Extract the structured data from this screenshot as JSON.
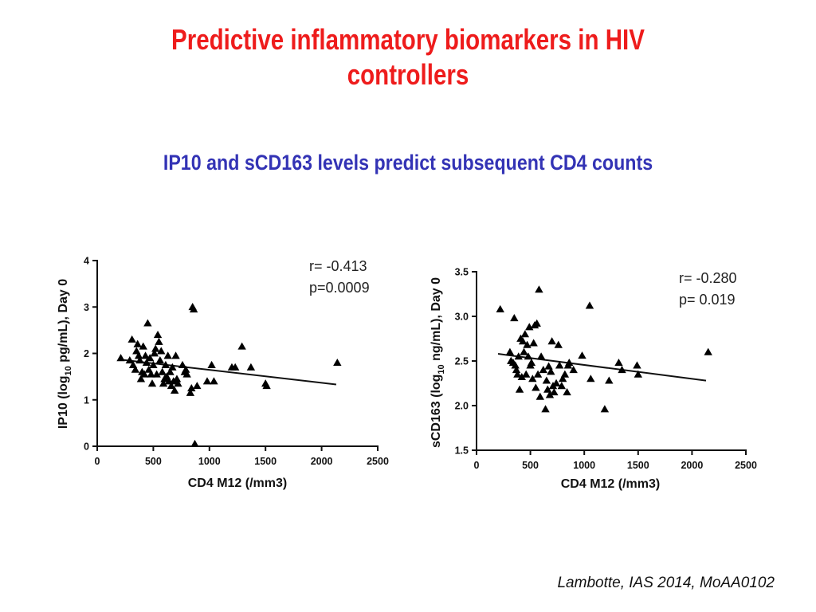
{
  "slide": {
    "title_line1": "Predictive inflammatory biomarkers in HIV",
    "title_line2": "controllers",
    "subtitle": "IP10 and sCD163 levels predict subsequent CD4 counts",
    "citation": "Lambotte, IAS 2014, MoAA0102",
    "colors": {
      "title": "#ee1c1c",
      "subtitle": "#3333b5",
      "markers": "#000000"
    }
  },
  "chart_data": [
    {
      "type": "scatter",
      "marker": "triangle",
      "xlabel": "CD4 M12 (/mm3)",
      "ylabel_parts": {
        "pre": "IP10 (log",
        "sub": "10",
        "post": " pg/mL), Day 0"
      },
      "xlim": [
        0,
        2500
      ],
      "ylim": [
        0,
        4
      ],
      "x_ticks": [
        0,
        500,
        1000,
        1500,
        2000,
        2500
      ],
      "y_ticks": [
        0,
        1,
        2,
        3,
        4
      ],
      "y_tick_labels": [
        "0",
        "1",
        "2",
        "3",
        "4"
      ],
      "annotation_r": "r= -0.413",
      "annotation_p": "p=0.0009",
      "fit_line": {
        "x": [
          200,
          2130
        ],
        "y": [
          1.87,
          1.33
        ]
      },
      "points": [
        [
          210,
          1.9
        ],
        [
          290,
          1.85
        ],
        [
          310,
          2.3
        ],
        [
          320,
          1.75
        ],
        [
          340,
          1.65
        ],
        [
          350,
          2.05
        ],
        [
          360,
          2.2
        ],
        [
          370,
          1.95
        ],
        [
          380,
          1.85
        ],
        [
          390,
          1.45
        ],
        [
          400,
          1.6
        ],
        [
          410,
          2.15
        ],
        [
          420,
          1.55
        ],
        [
          430,
          1.95
        ],
        [
          440,
          1.8
        ],
        [
          450,
          2.65
        ],
        [
          460,
          1.65
        ],
        [
          470,
          1.9
        ],
        [
          480,
          1.55
        ],
        [
          490,
          1.35
        ],
        [
          500,
          1.75
        ],
        [
          510,
          2.0
        ],
        [
          520,
          2.1
        ],
        [
          530,
          1.55
        ],
        [
          540,
          2.4
        ],
        [
          550,
          2.25
        ],
        [
          560,
          1.85
        ],
        [
          570,
          2.05
        ],
        [
          580,
          1.6
        ],
        [
          590,
          1.35
        ],
        [
          600,
          1.45
        ],
        [
          610,
          1.75
        ],
        [
          620,
          1.5
        ],
        [
          630,
          1.95
        ],
        [
          640,
          1.4
        ],
        [
          650,
          1.6
        ],
        [
          660,
          1.3
        ],
        [
          670,
          1.7
        ],
        [
          680,
          1.4
        ],
        [
          690,
          1.2
        ],
        [
          700,
          1.95
        ],
        [
          710,
          1.45
        ],
        [
          720,
          1.35
        ],
        [
          760,
          1.75
        ],
        [
          780,
          1.6
        ],
        [
          790,
          1.65
        ],
        [
          800,
          1.55
        ],
        [
          830,
          1.15
        ],
        [
          840,
          1.25
        ],
        [
          850,
          3.0
        ],
        [
          860,
          2.95
        ],
        [
          870,
          0.05
        ],
        [
          890,
          1.3
        ],
        [
          980,
          1.4
        ],
        [
          1020,
          1.75
        ],
        [
          1040,
          1.4
        ],
        [
          1200,
          1.7
        ],
        [
          1230,
          1.7
        ],
        [
          1290,
          2.15
        ],
        [
          1370,
          1.7
        ],
        [
          1500,
          1.35
        ],
        [
          1510,
          1.3
        ],
        [
          2140,
          1.8
        ]
      ]
    },
    {
      "type": "scatter",
      "marker": "triangle",
      "xlabel": "CD4 M12 (/mm3)",
      "ylabel_parts": {
        "pre": "sCD163 (log",
        "sub": "10",
        "post": " ng/mL), Day 0"
      },
      "xlim": [
        0,
        2500
      ],
      "ylim": [
        1.5,
        3.5
      ],
      "x_ticks": [
        0,
        500,
        1000,
        1500,
        2000,
        2500
      ],
      "y_ticks": [
        1.5,
        2.0,
        2.5,
        3.0,
        3.5
      ],
      "y_tick_labels": [
        "1.5",
        "2.0",
        "2.5",
        "3.0",
        "3.5"
      ],
      "annotation_r": "r= -0.280",
      "annotation_p": "p= 0.019",
      "fit_line": {
        "x": [
          200,
          2130
        ],
        "y": [
          2.58,
          2.28
        ]
      },
      "points": [
        [
          220,
          3.08
        ],
        [
          310,
          2.6
        ],
        [
          320,
          2.5
        ],
        [
          340,
          2.48
        ],
        [
          350,
          2.98
        ],
        [
          360,
          2.45
        ],
        [
          370,
          2.4
        ],
        [
          380,
          2.35
        ],
        [
          390,
          2.55
        ],
        [
          400,
          2.18
        ],
        [
          410,
          2.75
        ],
        [
          420,
          2.32
        ],
        [
          430,
          2.72
        ],
        [
          440,
          2.6
        ],
        [
          450,
          2.8
        ],
        [
          460,
          2.35
        ],
        [
          470,
          2.68
        ],
        [
          480,
          2.55
        ],
        [
          490,
          2.88
        ],
        [
          500,
          2.45
        ],
        [
          510,
          2.48
        ],
        [
          520,
          2.3
        ],
        [
          530,
          2.7
        ],
        [
          540,
          2.9
        ],
        [
          550,
          2.2
        ],
        [
          560,
          2.92
        ],
        [
          570,
          2.35
        ],
        [
          580,
          3.3
        ],
        [
          590,
          2.1
        ],
        [
          600,
          2.55
        ],
        [
          620,
          2.4
        ],
        [
          640,
          1.96
        ],
        [
          650,
          2.28
        ],
        [
          660,
          2.18
        ],
        [
          670,
          2.44
        ],
        [
          680,
          2.12
        ],
        [
          690,
          2.38
        ],
        [
          700,
          2.72
        ],
        [
          710,
          2.22
        ],
        [
          720,
          2.15
        ],
        [
          740,
          2.25
        ],
        [
          760,
          2.68
        ],
        [
          770,
          2.45
        ],
        [
          790,
          2.22
        ],
        [
          800,
          2.3
        ],
        [
          820,
          2.35
        ],
        [
          840,
          2.15
        ],
        [
          850,
          2.45
        ],
        [
          860,
          2.48
        ],
        [
          900,
          2.4
        ],
        [
          980,
          2.56
        ],
        [
          1050,
          3.12
        ],
        [
          1060,
          2.3
        ],
        [
          1190,
          1.96
        ],
        [
          1230,
          2.28
        ],
        [
          1320,
          2.48
        ],
        [
          1350,
          2.4
        ],
        [
          1490,
          2.45
        ],
        [
          1500,
          2.35
        ],
        [
          2150,
          2.6
        ]
      ]
    }
  ]
}
